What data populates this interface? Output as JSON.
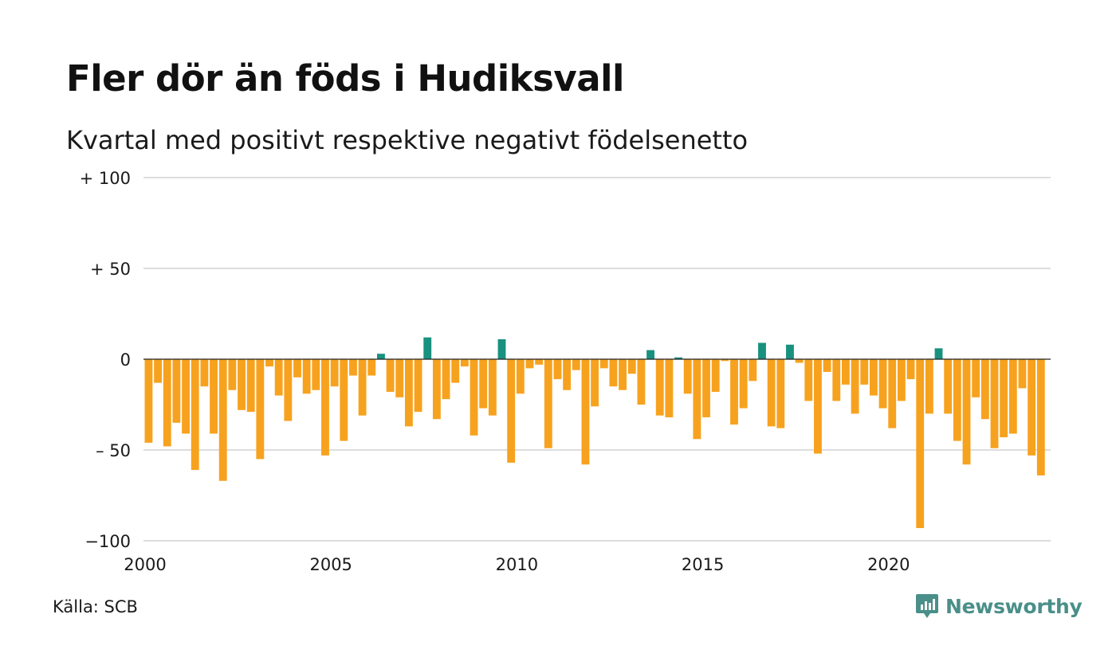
{
  "title": "Fler dör än föds i Hudiksvall",
  "subtitle": "Kvartal med positivt respektive negativt födelsenetto",
  "source": "Källa: SCB",
  "brand": "Newsworthy",
  "colors": {
    "positive": "#19917f",
    "negative": "#f7a21e",
    "grid": "#dddddd",
    "zero_line": "#222222",
    "brand": "#4a8f89"
  },
  "chart_data": {
    "type": "bar",
    "ylim": [
      -100,
      100
    ],
    "y_ticks": [
      100,
      50,
      0,
      -50,
      -100
    ],
    "y_tick_labels": [
      "+ 100",
      "+  50",
      "0",
      "– 50",
      "−100"
    ],
    "x_ticks": [
      2000,
      2005,
      2010,
      2015,
      2020
    ],
    "x_tick_labels": [
      "2000",
      "2005",
      "2010",
      "2015",
      "2020"
    ],
    "start_year": 2000,
    "period": "quarter",
    "grid": true,
    "series": [
      {
        "values": [
          -46,
          -13,
          -48,
          -35,
          -41,
          -61,
          -15,
          -41,
          -67,
          -17,
          -28,
          -29,
          -55,
          -4,
          -20,
          -34,
          -10,
          -19,
          -17,
          -53,
          -15,
          -45,
          -9,
          -31,
          -9,
          3,
          -18,
          -21,
          -37,
          -29,
          12,
          -33,
          -22,
          -13,
          -4,
          -42,
          -27,
          -31,
          11,
          -57,
          -19,
          -5,
          -3,
          -49,
          -11,
          -17,
          -6,
          -58,
          -26,
          -5,
          -15,
          -17,
          -8,
          -25,
          5,
          -31,
          -32,
          1,
          -19,
          -44,
          -32,
          -18,
          -1,
          -36,
          -27,
          -12,
          9,
          -37,
          -38,
          8,
          -2,
          -23,
          -52,
          -7,
          -23,
          -14,
          -30,
          -14,
          -20,
          -27,
          -38,
          -23,
          -11,
          -93,
          -30,
          6,
          -30,
          -45,
          -58,
          -21,
          -33,
          -49,
          -43,
          -41,
          -16,
          -53,
          -64
        ]
      }
    ]
  }
}
